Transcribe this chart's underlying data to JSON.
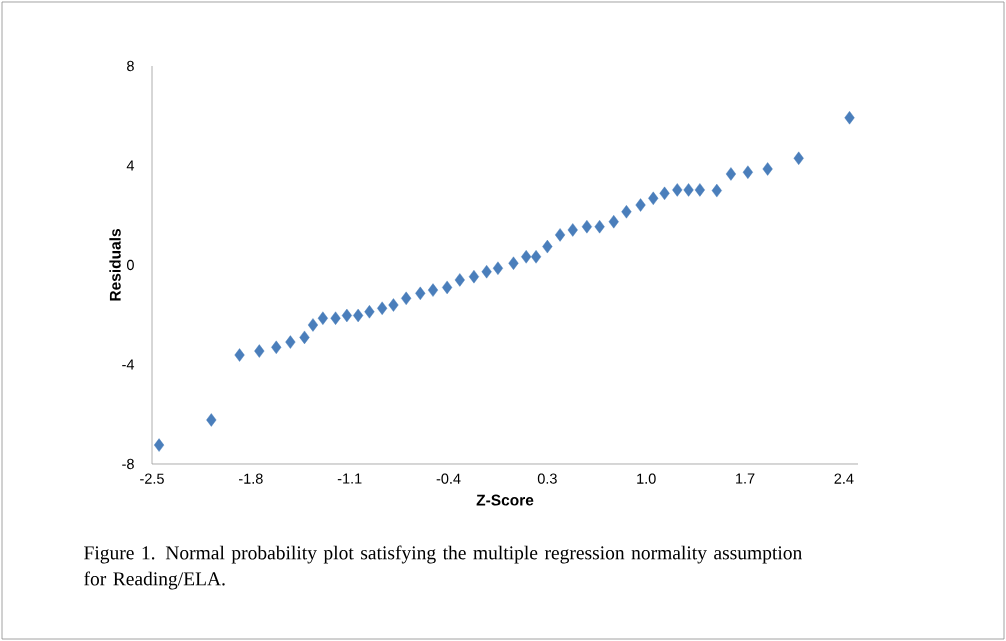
{
  "chart_data": {
    "type": "scatter",
    "xlabel": "Z-Score",
    "ylabel": "Residuals",
    "xlim": [
      -2.5,
      2.5
    ],
    "ylim": [
      -8,
      8
    ],
    "xticks": [
      -2.5,
      -1.8,
      -1.1,
      -0.4,
      0.3,
      {
        "value": 1.0,
        "label": "1.0"
      },
      1.7,
      2.4
    ],
    "yticks": [
      -8,
      -4,
      0,
      4,
      8
    ],
    "marker": "diamond",
    "color": "#4a7ebb",
    "x": [
      -2.45,
      -2.08,
      -1.88,
      -1.74,
      -1.62,
      -1.52,
      -1.42,
      -1.36,
      -1.29,
      -1.2,
      -1.12,
      -1.04,
      -0.96,
      -0.87,
      -0.79,
      -0.7,
      -0.6,
      -0.51,
      -0.41,
      -0.32,
      -0.22,
      -0.13,
      -0.05,
      0.06,
      0.15,
      0.22,
      0.3,
      0.39,
      0.48,
      0.58,
      0.67,
      0.77,
      0.86,
      0.96,
      1.05,
      1.13,
      1.22,
      1.3,
      1.38,
      1.5,
      1.6,
      1.72,
      1.86,
      2.08,
      2.44
    ],
    "values": [
      -7.24,
      -6.23,
      -3.62,
      -3.46,
      -3.31,
      -3.1,
      -2.91,
      -2.41,
      -2.14,
      -2.14,
      -2.03,
      -2.03,
      -1.88,
      -1.74,
      -1.61,
      -1.34,
      -1.14,
      -1.01,
      -0.9,
      -0.6,
      -0.47,
      -0.27,
      -0.13,
      0.07,
      0.33,
      0.33,
      0.74,
      1.21,
      1.41,
      1.54,
      1.54,
      1.74,
      2.14,
      2.41,
      2.68,
      2.88,
      3.02,
      3.02,
      3.02,
      2.99,
      3.66,
      3.73,
      3.86,
      4.29,
      5.92
    ],
    "annotations": [
      "Figure 1.  Normal probability plot satisfying the multiple regression normality assumption for Reading/ELA."
    ]
  }
}
